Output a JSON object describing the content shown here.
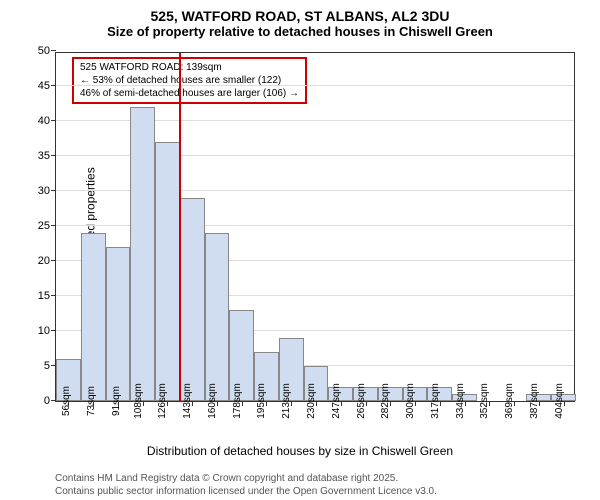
{
  "title": {
    "main": "525, WATFORD ROAD, ST ALBANS, AL2 3DU",
    "sub": "Size of property relative to detached houses in Chiswell Green"
  },
  "chart": {
    "type": "histogram",
    "x_labels": [
      "56sqm",
      "73sqm",
      "91sqm",
      "108sqm",
      "126sqm",
      "143sqm",
      "160sqm",
      "178sqm",
      "195sqm",
      "213sqm",
      "230sqm",
      "247sqm",
      "265sqm",
      "282sqm",
      "300sqm",
      "317sqm",
      "334sqm",
      "352sqm",
      "369sqm",
      "387sqm",
      "404sqm"
    ],
    "values": [
      6,
      24,
      22,
      42,
      37,
      29,
      24,
      13,
      7,
      9,
      5,
      2,
      2,
      2,
      2,
      2,
      1,
      0,
      0,
      1,
      1
    ],
    "ylim": [
      0,
      50
    ],
    "ytick_step": 5,
    "bar_fill": "#d0dcef",
    "bar_border": "#888888",
    "grid_color": "#dddddd",
    "reference_line_color": "#cc0000",
    "reference_line_index": 5,
    "ylabel": "Number of detached properties",
    "xlabel": "Distribution of detached houses by size in Chiswell Green"
  },
  "annotation": {
    "line1": "525 WATFORD ROAD: 139sqm",
    "line2": "← 53% of detached houses are smaller (122)",
    "line3": "46% of semi-detached houses are larger (106) →"
  },
  "attribution": {
    "line1": "Contains HM Land Registry data © Crown copyright and database right 2025.",
    "line2": "Contains public sector information licensed under the Open Government Licence v3.0."
  }
}
